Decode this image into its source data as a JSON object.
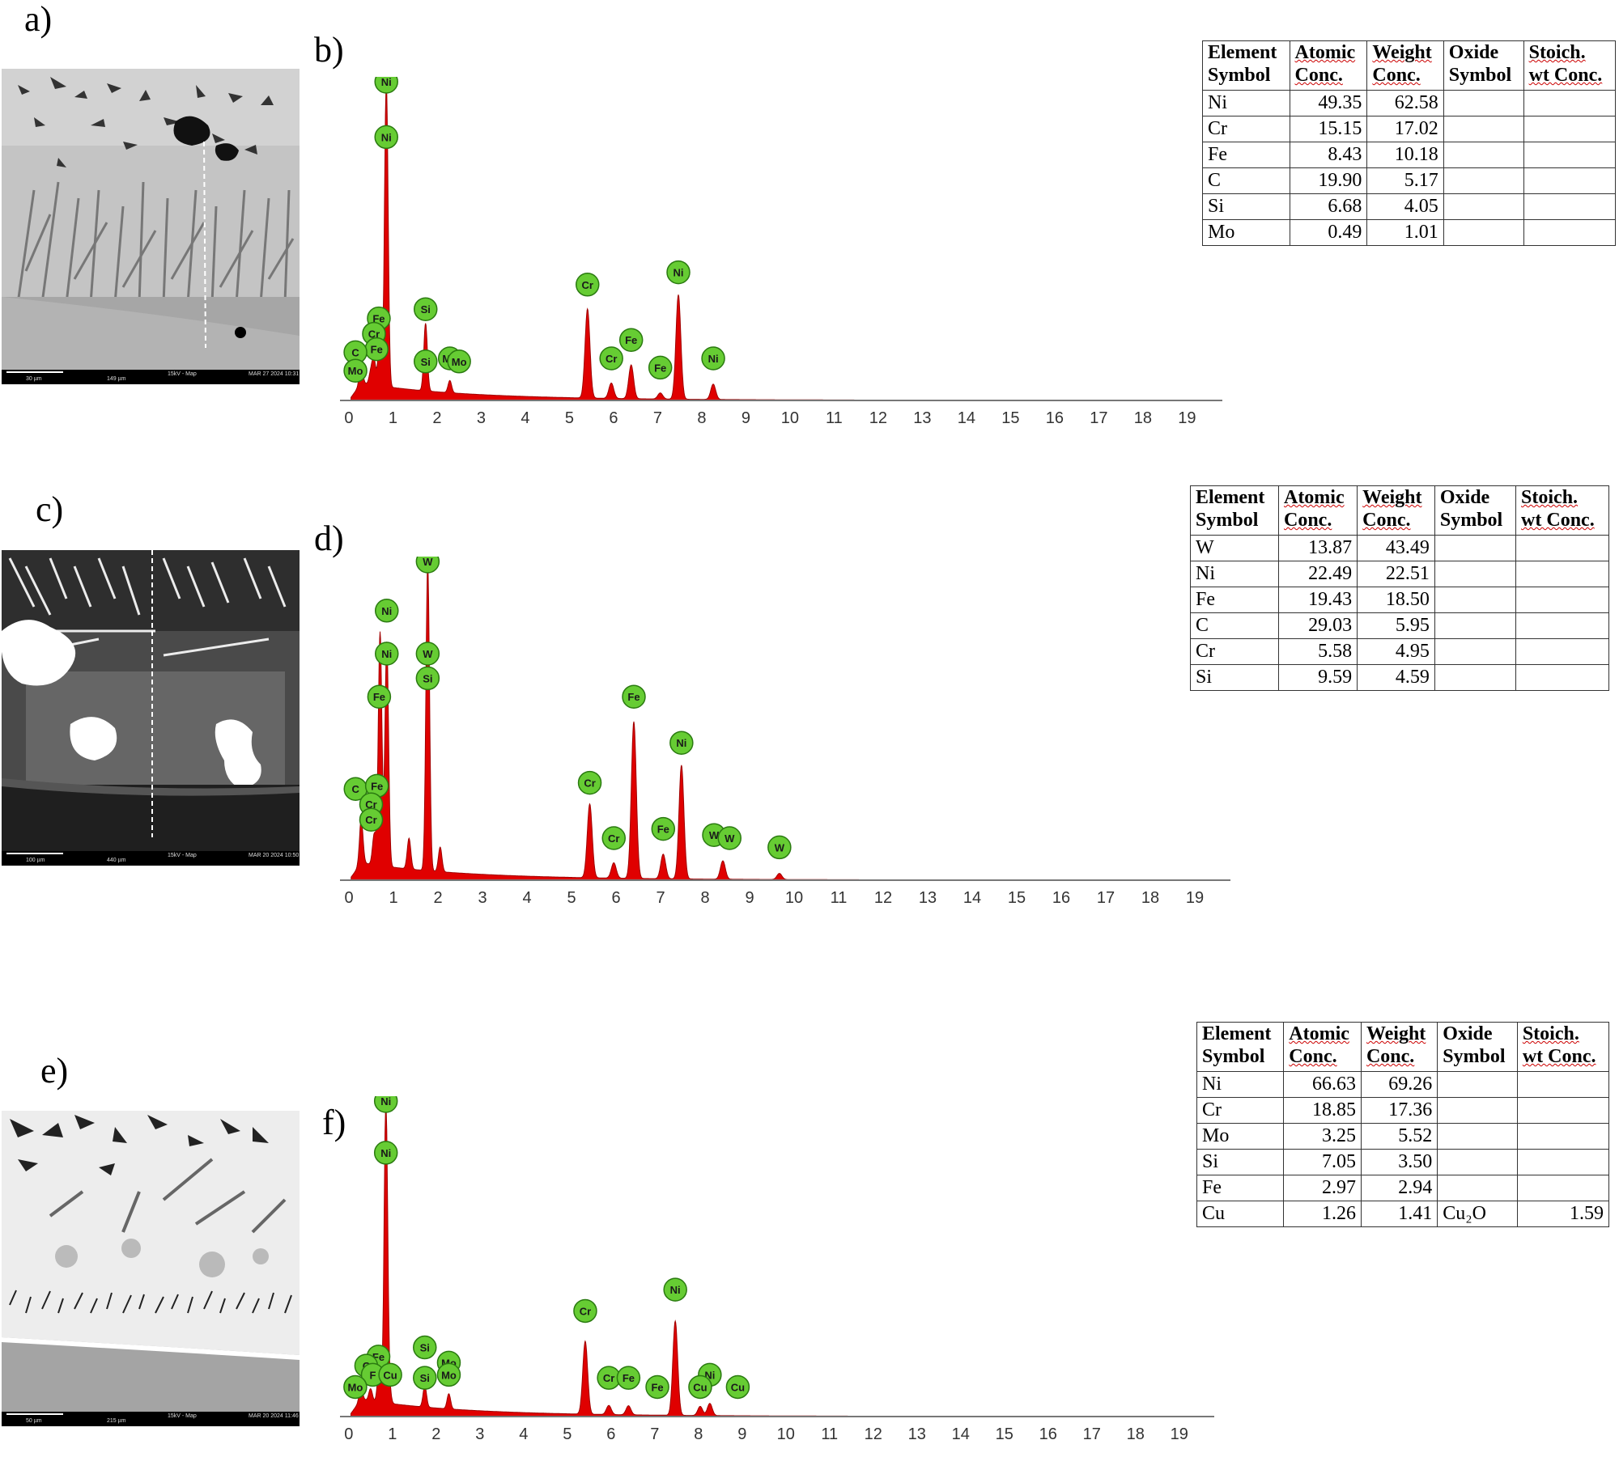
{
  "labels": {
    "a": "a)",
    "b": "b)",
    "c": "c)",
    "d": "d)",
    "e": "e)",
    "f": "f)"
  },
  "sem_images": [
    {
      "scale_label": "30 µm",
      "hfw": "149 µm",
      "mode": "15kV - Map",
      "date": "MAR 27 2024 10:31"
    },
    {
      "scale_label": "100 µm",
      "hfw": "440 µm",
      "mode": "15kV - Map",
      "date": "MAR 20 2024 10:50"
    },
    {
      "scale_label": "50 µm",
      "hfw": "215 µm",
      "mode": "15kV - Map",
      "date": "MAR 20 2024 11:46"
    }
  ],
  "table_headers": [
    [
      "Element",
      "Symbol"
    ],
    [
      "Atomic",
      "Conc."
    ],
    [
      "Weight",
      "Conc."
    ],
    [
      "Oxide",
      "Symbol"
    ],
    [
      "Stoich.",
      "wt Conc."
    ]
  ],
  "tables": [
    {
      "rows": [
        [
          "Ni",
          "49.35",
          "62.58",
          "",
          ""
        ],
        [
          "Cr",
          "15.15",
          "17.02",
          "",
          ""
        ],
        [
          "Fe",
          "8.43",
          "10.18",
          "",
          ""
        ],
        [
          "C",
          "19.90",
          "5.17",
          "",
          ""
        ],
        [
          "Si",
          "6.68",
          "4.05",
          "",
          ""
        ],
        [
          "Mo",
          "0.49",
          "1.01",
          "",
          ""
        ]
      ]
    },
    {
      "rows": [
        [
          "W",
          "13.87",
          "43.49",
          "",
          ""
        ],
        [
          "Ni",
          "22.49",
          "22.51",
          "",
          ""
        ],
        [
          "Fe",
          "19.43",
          "18.50",
          "",
          ""
        ],
        [
          "C",
          "29.03",
          "5.95",
          "",
          ""
        ],
        [
          "Cr",
          "5.58",
          "4.95",
          "",
          ""
        ],
        [
          "Si",
          "9.59",
          "4.59",
          "",
          ""
        ]
      ]
    },
    {
      "rows": [
        [
          "Ni",
          "66.63",
          "69.26",
          "",
          ""
        ],
        [
          "Cr",
          "18.85",
          "17.36",
          "",
          ""
        ],
        [
          "Mo",
          "3.25",
          "5.52",
          "",
          ""
        ],
        [
          "Si",
          "7.05",
          "3.50",
          "",
          ""
        ],
        [
          "Fe",
          "2.97",
          "2.94",
          "",
          ""
        ],
        [
          "Cu",
          "1.26",
          "1.41",
          "Cu₂O",
          "1.59"
        ]
      ]
    }
  ],
  "chart_data": [
    {
      "type": "area",
      "xlabel": "",
      "ylabel": "",
      "x_ticks": [
        "0",
        "1",
        "2",
        "3",
        "4",
        "5",
        "6",
        "7",
        "8",
        "9",
        "10",
        "11",
        "12",
        "13",
        "14",
        "15",
        "16",
        "17",
        "18",
        "19"
      ],
      "xlim": [
        -0.2,
        19.8
      ],
      "ylim": [
        0,
        100
      ],
      "fill_color": "#e00000",
      "marker_color": "#66cc33",
      "peaks": [
        {
          "element": "C",
          "x": 0.277,
          "y": 6
        },
        {
          "element": "Mo",
          "x": 0.5,
          "y": 4
        },
        {
          "element": "Cr",
          "x": 0.57,
          "y": 8
        },
        {
          "element": "Fe",
          "x": 0.7,
          "y": 14
        },
        {
          "element": "Ni",
          "x": 0.85,
          "y": 100
        },
        {
          "element": "Si",
          "x": 1.74,
          "y": 22
        },
        {
          "element": "Mo",
          "x": 2.29,
          "y": 4
        },
        {
          "element": "Cr",
          "x": 5.41,
          "y": 29
        },
        {
          "element": "Cr",
          "x": 5.95,
          "y": 5
        },
        {
          "element": "Fe",
          "x": 6.4,
          "y": 11
        },
        {
          "element": "Fe",
          "x": 7.06,
          "y": 2
        },
        {
          "element": "Ni",
          "x": 7.47,
          "y": 34
        },
        {
          "element": "Ni",
          "x": 8.26,
          "y": 5
        }
      ],
      "labels": [
        {
          "element": "Ni",
          "x": 0.85,
          "y": 100
        },
        {
          "element": "Ni",
          "x": 0.85,
          "y": 82
        },
        {
          "element": "Fe",
          "x": 0.68,
          "y": 23
        },
        {
          "element": "Cr",
          "x": 0.57,
          "y": 18
        },
        {
          "element": "Fe",
          "x": 0.63,
          "y": 13
        },
        {
          "element": "C",
          "x": 0.15,
          "y": 12
        },
        {
          "element": "Mo",
          "x": 0.15,
          "y": 6
        },
        {
          "element": "Si",
          "x": 1.74,
          "y": 26
        },
        {
          "element": "Si",
          "x": 1.74,
          "y": 9
        },
        {
          "element": "Mo",
          "x": 2.29,
          "y": 10
        },
        {
          "element": "Mo",
          "x": 2.5,
          "y": 9
        },
        {
          "element": "Cr",
          "x": 5.41,
          "y": 34
        },
        {
          "element": "Cr",
          "x": 5.95,
          "y": 10
        },
        {
          "element": "Fe",
          "x": 6.4,
          "y": 16
        },
        {
          "element": "Fe",
          "x": 7.06,
          "y": 7
        },
        {
          "element": "Ni",
          "x": 7.47,
          "y": 38
        },
        {
          "element": "Ni",
          "x": 8.26,
          "y": 10
        }
      ]
    },
    {
      "type": "area",
      "xlabel": "",
      "ylabel": "",
      "x_ticks": [
        "0",
        "1",
        "2",
        "3",
        "4",
        "5",
        "6",
        "7",
        "8",
        "9",
        "10",
        "11",
        "12",
        "13",
        "14",
        "15",
        "16",
        "17",
        "18",
        "19"
      ],
      "xlim": [
        -0.2,
        19.8
      ],
      "ylim": [
        0,
        100
      ],
      "fill_color": "#e00000",
      "marker_color": "#66cc33",
      "peaks": [
        {
          "element": "C",
          "x": 0.277,
          "y": 14
        },
        {
          "element": "Cr",
          "x": 0.57,
          "y": 10
        },
        {
          "element": "Fe",
          "x": 0.7,
          "y": 76
        },
        {
          "element": "Ni",
          "x": 0.85,
          "y": 73
        },
        {
          "element": "Si",
          "x": 1.35,
          "y": 10
        },
        {
          "element": "W",
          "x": 1.77,
          "y": 100
        },
        {
          "element": "W",
          "x": 2.05,
          "y": 8
        },
        {
          "element": "Cr",
          "x": 5.41,
          "y": 24
        },
        {
          "element": "Cr",
          "x": 5.95,
          "y": 5
        },
        {
          "element": "Fe",
          "x": 6.4,
          "y": 51
        },
        {
          "element": "Fe",
          "x": 7.06,
          "y": 8
        },
        {
          "element": "Ni",
          "x": 7.47,
          "y": 37
        },
        {
          "element": "W",
          "x": 8.4,
          "y": 6
        },
        {
          "element": "W",
          "x": 9.67,
          "y": 2
        }
      ],
      "labels": [
        {
          "element": "W",
          "x": 1.77,
          "y": 100
        },
        {
          "element": "Ni",
          "x": 0.85,
          "y": 84
        },
        {
          "element": "W",
          "x": 1.77,
          "y": 70
        },
        {
          "element": "Ni",
          "x": 0.85,
          "y": 70
        },
        {
          "element": "Si",
          "x": 1.77,
          "y": 62
        },
        {
          "element": "Fe",
          "x": 0.68,
          "y": 56
        },
        {
          "element": "C",
          "x": 0.15,
          "y": 26
        },
        {
          "element": "Fe",
          "x": 0.63,
          "y": 27
        },
        {
          "element": "Cr",
          "x": 0.5,
          "y": 21
        },
        {
          "element": "Cr",
          "x": 0.5,
          "y": 16
        },
        {
          "element": "Cr",
          "x": 5.41,
          "y": 28
        },
        {
          "element": "Cr",
          "x": 5.95,
          "y": 10
        },
        {
          "element": "Fe",
          "x": 6.4,
          "y": 56
        },
        {
          "element": "Fe",
          "x": 7.06,
          "y": 13
        },
        {
          "element": "Ni",
          "x": 7.47,
          "y": 41
        },
        {
          "element": "W",
          "x": 8.2,
          "y": 11
        },
        {
          "element": "W",
          "x": 8.55,
          "y": 10
        },
        {
          "element": "W",
          "x": 9.67,
          "y": 7
        }
      ]
    },
    {
      "type": "area",
      "xlabel": "",
      "ylabel": "",
      "x_ticks": [
        "0",
        "1",
        "2",
        "3",
        "4",
        "5",
        "6",
        "7",
        "8",
        "9",
        "10",
        "11",
        "12",
        "13",
        "14",
        "15",
        "16",
        "17",
        "18",
        "19"
      ],
      "xlim": [
        -0.2,
        19.8
      ],
      "ylim": [
        0,
        100
      ],
      "fill_color": "#e00000",
      "marker_color": "#66cc33",
      "peaks": [
        {
          "element": "C",
          "x": 0.277,
          "y": 4
        },
        {
          "element": "Mo",
          "x": 0.5,
          "y": 4
        },
        {
          "element": "Fe",
          "x": 0.7,
          "y": 13
        },
        {
          "element": "Ni",
          "x": 0.85,
          "y": 100
        },
        {
          "element": "Cu",
          "x": 0.93,
          "y": 4
        },
        {
          "element": "Si",
          "x": 1.74,
          "y": 7
        },
        {
          "element": "Mo",
          "x": 2.29,
          "y": 5
        },
        {
          "element": "Cr",
          "x": 5.41,
          "y": 24
        },
        {
          "element": "Cr",
          "x": 5.95,
          "y": 3
        },
        {
          "element": "Fe",
          "x": 6.4,
          "y": 3
        },
        {
          "element": "Ni",
          "x": 7.47,
          "y": 31
        },
        {
          "element": "Ni",
          "x": 8.26,
          "y": 4
        },
        {
          "element": "Cu",
          "x": 8.04,
          "y": 3
        }
      ],
      "labels": [
        {
          "element": "Ni",
          "x": 0.85,
          "y": 100
        },
        {
          "element": "Ni",
          "x": 0.85,
          "y": 83
        },
        {
          "element": "Fe",
          "x": 0.68,
          "y": 16
        },
        {
          "element": "C",
          "x": 0.4,
          "y": 13
        },
        {
          "element": "F",
          "x": 0.55,
          "y": 10
        },
        {
          "element": "Cu",
          "x": 0.95,
          "y": 10
        },
        {
          "element": "Mo",
          "x": 0.15,
          "y": 6
        },
        {
          "element": "Si",
          "x": 1.74,
          "y": 19
        },
        {
          "element": "Si",
          "x": 1.74,
          "y": 9
        },
        {
          "element": "Mo",
          "x": 2.29,
          "y": 14
        },
        {
          "element": "Mo",
          "x": 2.29,
          "y": 10
        },
        {
          "element": "Cr",
          "x": 5.41,
          "y": 31
        },
        {
          "element": "Cr",
          "x": 5.95,
          "y": 9
        },
        {
          "element": "Fe",
          "x": 6.4,
          "y": 9
        },
        {
          "element": "Fe",
          "x": 7.06,
          "y": 6
        },
        {
          "element": "Ni",
          "x": 7.47,
          "y": 38
        },
        {
          "element": "Ni",
          "x": 8.26,
          "y": 10
        },
        {
          "element": "Cu",
          "x": 8.04,
          "y": 6
        },
        {
          "element": "Cu",
          "x": 8.9,
          "y": 6
        }
      ]
    }
  ]
}
